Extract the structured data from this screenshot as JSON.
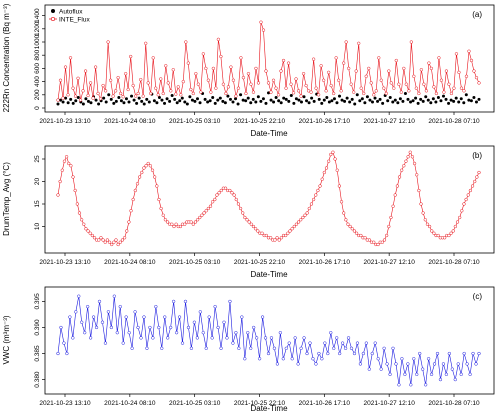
{
  "figure": {
    "x_ticks": [
      "2021-10-23 13:10",
      "2021-10-24 08:10",
      "2021-10-25 03:10",
      "2021-10-25 22:10",
      "2021-10-26 17:10",
      "2021-10-27 12:10",
      "2021-10-28 07:10"
    ],
    "x_label": "Date-Time"
  },
  "chart_data": [
    {
      "type": "line",
      "panel_label": "(a)",
      "ylabel": "222Rn Concentration (Bq m⁻³)",
      "xlabel": "Date-Time",
      "x_tick_labels": [
        "2021-10-23 13:10",
        "2021-10-24 08:10",
        "2021-10-25 03:10",
        "2021-10-25 22:10",
        "2021-10-26 17:10",
        "2021-10-27 12:10",
        "2021-10-28 07:10"
      ],
      "ylim": [
        0,
        1500
      ],
      "y_ticks": [
        0,
        200,
        400,
        600,
        800,
        1000,
        1200,
        1400
      ],
      "legend_position": "top-left",
      "series": [
        {
          "name": "Autoflux",
          "color": "#000000",
          "marker": "filled-circle",
          "line": false,
          "y": [
            60,
            120,
            90,
            150,
            80,
            130,
            70,
            110,
            160,
            90,
            60,
            140,
            100,
            80,
            170,
            120,
            60,
            110,
            150,
            90,
            200,
            130,
            70,
            100,
            160,
            110,
            80,
            140,
            90,
            180,
            120,
            70,
            150,
            100,
            60,
            130,
            90,
            210,
            110,
            80,
            160,
            120,
            70,
            140,
            100,
            190,
            130,
            80,
            110,
            150,
            90,
            60,
            170,
            120,
            100,
            140,
            80,
            220,
            130,
            90,
            110,
            160,
            70,
            120,
            150,
            100,
            80,
            180,
            130,
            90,
            140,
            60,
            200,
            120,
            110,
            150,
            80,
            130,
            90,
            170,
            100,
            140,
            70,
            230,
            120,
            90,
            160,
            110,
            80,
            150,
            130,
            100,
            190,
            70,
            140,
            120,
            90,
            170,
            110,
            80,
            150,
            100,
            210,
            130,
            70,
            120,
            160,
            90,
            110,
            140,
            80,
            180,
            120,
            100,
            150,
            90,
            130,
            60,
            200,
            110,
            140,
            80,
            170,
            120,
            90,
            150,
            100,
            130,
            70,
            190,
            110,
            160,
            90,
            120,
            80,
            140,
            100,
            220,
            130,
            90,
            110,
            150,
            70,
            130,
            100,
            170,
            120,
            80,
            140,
            90,
            160,
            110,
            180,
            130,
            70,
            120,
            100,
            150,
            90,
            140,
            80,
            200,
            120,
            110,
            160,
            90,
            130
          ]
        },
        {
          "name": "INTE_Flux",
          "color": "#e8141c",
          "marker": "open-circle",
          "line": true,
          "y": [
            120,
            420,
            150,
            620,
            200,
            760,
            300,
            180,
            450,
            120,
            260,
            560,
            190,
            380,
            150,
            620,
            220,
            140,
            340,
            260,
            1000,
            420,
            180,
            260,
            460,
            220,
            170,
            520,
            280,
            780,
            340,
            180,
            220,
            430,
            180,
            980,
            380,
            220,
            760,
            300,
            200,
            440,
            220,
            640,
            380,
            260,
            580,
            210,
            320,
            200,
            400,
            1000,
            680,
            280,
            220,
            520,
            360,
            240,
            820,
            600,
            420,
            240,
            600,
            300,
            1040,
            780,
            360,
            220,
            320,
            620,
            420,
            180,
            300,
            760,
            460,
            220,
            520,
            360,
            240,
            600,
            380,
            1300,
            1180,
            560,
            380,
            240,
            420,
            300,
            200,
            560,
            720,
            300,
            680,
            360,
            230,
            440,
            260,
            180,
            520,
            340,
            260,
            240,
            740,
            300,
            200,
            640,
            420,
            260,
            540,
            340,
            220,
            760,
            420,
            260,
            680,
            1000,
            600,
            360,
            240,
            560,
            980,
            300,
            220,
            480,
            600,
            380,
            200,
            260,
            760,
            420,
            300,
            220,
            560,
            380,
            300,
            720,
            360,
            240,
            600,
            360,
            260,
            1000,
            480,
            300,
            220,
            580,
            360,
            260,
            680,
            600,
            320,
            220,
            760,
            420,
            240,
            560,
            360,
            220,
            300,
            820,
            540,
            300,
            260,
            480,
            860,
            720,
            560,
            460,
            380
          ]
        }
      ]
    },
    {
      "type": "line",
      "panel_label": "(b)",
      "ylabel": "DrumTemp_Avg (°C)",
      "xlabel": "Date-Time",
      "x_tick_labels": [
        "2021-10-23 13:10",
        "2021-10-24 08:10",
        "2021-10-25 03:10",
        "2021-10-25 22:10",
        "2021-10-26 17:10",
        "2021-10-27 12:10",
        "2021-10-28 07:10"
      ],
      "ylim": [
        5,
        27
      ],
      "y_ticks": [
        10,
        15,
        20,
        25
      ],
      "series": [
        {
          "name": "",
          "color": "#e8141c",
          "marker": "open-circle",
          "line": true,
          "y": [
            17,
            20,
            22.5,
            24.5,
            25.5,
            24,
            23.5,
            21,
            18,
            15,
            13,
            11.5,
            10.5,
            9.5,
            9,
            8.5,
            8,
            7.5,
            7,
            7,
            7.5,
            7,
            6.5,
            7,
            6.5,
            6,
            6.5,
            7,
            6,
            6.5,
            7,
            7.5,
            9,
            11,
            13.5,
            16,
            18,
            19.5,
            21,
            22,
            23,
            23.5,
            24,
            23.5,
            22.5,
            21,
            19,
            16,
            14,
            12.5,
            11.5,
            11,
            10.5,
            10.5,
            10,
            10.5,
            10,
            10,
            10.5,
            10.5,
            11,
            11,
            11,
            10.5,
            11,
            11.5,
            12,
            12.5,
            13,
            13.5,
            14,
            14.5,
            15.5,
            16,
            17,
            17.5,
            18,
            18.5,
            18.5,
            18,
            18,
            17.5,
            17,
            16,
            15,
            14,
            13,
            12,
            11.5,
            11,
            10.5,
            10,
            9.5,
            9,
            8.5,
            8.5,
            8,
            8,
            7.5,
            7.5,
            7,
            7,
            7.5,
            7,
            7.5,
            8,
            8,
            8.5,
            9,
            9.5,
            10,
            10.5,
            11,
            11.5,
            12,
            12.5,
            13,
            14,
            15,
            16,
            17,
            18,
            19,
            20.5,
            22,
            23,
            24.5,
            26,
            26.5,
            25,
            22.5,
            19,
            15.5,
            13,
            11.5,
            10.5,
            10,
            9.5,
            9,
            8.5,
            8,
            8,
            7.5,
            7.5,
            7,
            7,
            6.5,
            6.5,
            6,
            6,
            6.5,
            6.5,
            7,
            8,
            10,
            12,
            14.5,
            17,
            19,
            21,
            22.5,
            23.5,
            24.5,
            25.5,
            26.5,
            25.5,
            24,
            21.5,
            18,
            15,
            13,
            11.5,
            10.5,
            10,
            9,
            8.5,
            8,
            8,
            7.5,
            7.5,
            7.5,
            8,
            8,
            8.5,
            9,
            10,
            11,
            12,
            13.5,
            15,
            16,
            17,
            18,
            19,
            20,
            21,
            22
          ]
        }
      ]
    },
    {
      "type": "line",
      "panel_label": "(c)",
      "ylabel": "VWC (m³m⁻³)",
      "xlabel": "Date-Time",
      "x_tick_labels": [
        "2021-10-23 13:10",
        "2021-10-24 08:10",
        "2021-10-25 03:10",
        "2021-10-25 22:10",
        "2021-10-26 17:10",
        "2021-10-27 12:10",
        "2021-10-28 07:10"
      ],
      "ylim": [
        0.378,
        0.397
      ],
      "y_ticks": [
        0.38,
        0.385,
        0.39,
        0.395
      ],
      "series": [
        {
          "name": "",
          "color": "#1d1de0",
          "marker": "open-circle",
          "line": true,
          "y": [
            0.385,
            0.39,
            0.387,
            0.385,
            0.392,
            0.388,
            0.393,
            0.396,
            0.391,
            0.389,
            0.394,
            0.388,
            0.392,
            0.39,
            0.395,
            0.391,
            0.387,
            0.393,
            0.39,
            0.396,
            0.389,
            0.394,
            0.387,
            0.392,
            0.389,
            0.386,
            0.393,
            0.39,
            0.388,
            0.392,
            0.386,
            0.39,
            0.388,
            0.394,
            0.39,
            0.386,
            0.392,
            0.388,
            0.39,
            0.395,
            0.389,
            0.392,
            0.387,
            0.395,
            0.39,
            0.386,
            0.391,
            0.388,
            0.393,
            0.389,
            0.386,
            0.392,
            0.388,
            0.394,
            0.39,
            0.386,
            0.391,
            0.388,
            0.395,
            0.387,
            0.389,
            0.386,
            0.392,
            0.384,
            0.389,
            0.386,
            0.39,
            0.388,
            0.384,
            0.392,
            0.388,
            0.385,
            0.388,
            0.386,
            0.383,
            0.389,
            0.384,
            0.386,
            0.387,
            0.384,
            0.388,
            0.383,
            0.386,
            0.388,
            0.385,
            0.387,
            0.384,
            0.383,
            0.385,
            0.384,
            0.387,
            0.385,
            0.389,
            0.386,
            0.388,
            0.385,
            0.387,
            0.386,
            0.388,
            0.386,
            0.385,
            0.387,
            0.383,
            0.385,
            0.387,
            0.382,
            0.385,
            0.387,
            0.384,
            0.382,
            0.386,
            0.383,
            0.381,
            0.386,
            0.383,
            0.379,
            0.384,
            0.381,
            0.383,
            0.379,
            0.384,
            0.381,
            0.385,
            0.382,
            0.379,
            0.384,
            0.381,
            0.383,
            0.385,
            0.38,
            0.383,
            0.381,
            0.385,
            0.382,
            0.38,
            0.383,
            0.381,
            0.385,
            0.383,
            0.381,
            0.385,
            0.383,
            0.385
          ]
        }
      ]
    }
  ]
}
